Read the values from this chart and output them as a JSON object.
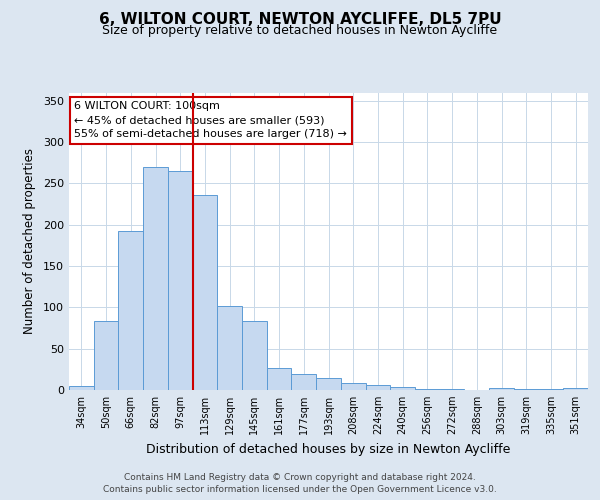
{
  "title": "6, WILTON COURT, NEWTON AYCLIFFE, DL5 7PU",
  "subtitle": "Size of property relative to detached houses in Newton Aycliffe",
  "xlabel": "Distribution of detached houses by size in Newton Aycliffe",
  "ylabel": "Number of detached properties",
  "bar_labels": [
    "34sqm",
    "50sqm",
    "66sqm",
    "82sqm",
    "97sqm",
    "113sqm",
    "129sqm",
    "145sqm",
    "161sqm",
    "177sqm",
    "193sqm",
    "208sqm",
    "224sqm",
    "240sqm",
    "256sqm",
    "272sqm",
    "288sqm",
    "303sqm",
    "319sqm",
    "335sqm",
    "351sqm"
  ],
  "bar_values": [
    5,
    83,
    192,
    270,
    265,
    236,
    102,
    84,
    27,
    19,
    15,
    9,
    6,
    4,
    1,
    1,
    0,
    3,
    1,
    1,
    3
  ],
  "bar_color": "#c6d9f0",
  "bar_edge_color": "#5b9bd5",
  "vline_x_idx": 4,
  "vline_color": "#cc0000",
  "annotation_text": "6 WILTON COURT: 100sqm\n← 45% of detached houses are smaller (593)\n55% of semi-detached houses are larger (718) →",
  "annotation_box_color": "#ffffff",
  "annotation_box_edge": "#cc0000",
  "ylim": [
    0,
    360
  ],
  "yticks": [
    0,
    50,
    100,
    150,
    200,
    250,
    300,
    350
  ],
  "background_color": "#dce6f1",
  "plot_bg_color": "#ffffff",
  "footer_line1": "Contains HM Land Registry data © Crown copyright and database right 2024.",
  "footer_line2": "Contains public sector information licensed under the Open Government Licence v3.0.",
  "title_fontsize": 11,
  "subtitle_fontsize": 9
}
